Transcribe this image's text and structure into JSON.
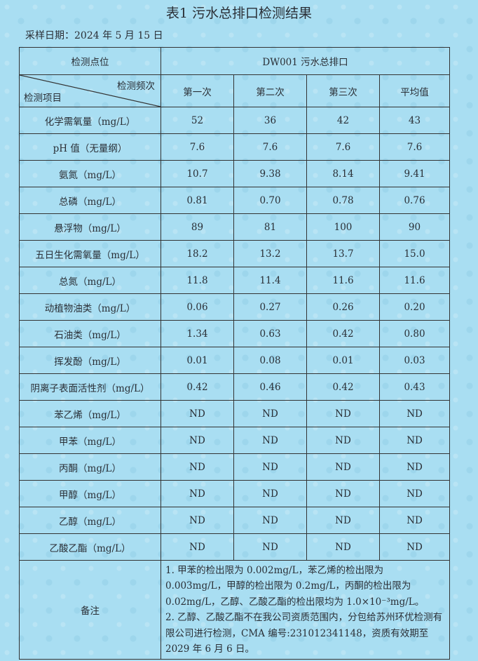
{
  "title": "表1 污水总排口检测结果",
  "sample_date": "采样日期：2024 年 5 月 15 日",
  "header": {
    "point_label": "检测点位",
    "point_value": "DW001 污水总排口",
    "freq_label": "检测频次",
    "item_label": "检测项目",
    "columns": [
      "第一次",
      "第二次",
      "第三次",
      "平均值"
    ]
  },
  "rows": [
    {
      "item": "化学需氧量（mg/L）",
      "values": [
        "52",
        "36",
        "42",
        "43"
      ]
    },
    {
      "item": "pH 值（无量纲）",
      "values": [
        "7.6",
        "7.6",
        "7.6",
        "7.6"
      ]
    },
    {
      "item": "氨氮（mg/L）",
      "values": [
        "10.7",
        "9.38",
        "8.14",
        "9.41"
      ]
    },
    {
      "item": "总磷（mg/L）",
      "values": [
        "0.81",
        "0.70",
        "0.78",
        "0.76"
      ]
    },
    {
      "item": "悬浮物（mg/L）",
      "values": [
        "89",
        "81",
        "100",
        "90"
      ]
    },
    {
      "item": "五日生化需氧量（mg/L）",
      "values": [
        "18.2",
        "13.2",
        "13.7",
        "15.0"
      ]
    },
    {
      "item": "总氮（mg/L）",
      "values": [
        "11.8",
        "11.4",
        "11.6",
        "11.6"
      ]
    },
    {
      "item": "动植物油类（mg/L）",
      "values": [
        "0.06",
        "0.27",
        "0.26",
        "0.20"
      ]
    },
    {
      "item": "石油类（mg/L）",
      "values": [
        "1.34",
        "0.63",
        "0.42",
        "0.80"
      ]
    },
    {
      "item": "挥发酚（mg/L）",
      "values": [
        "0.01",
        "0.08",
        "0.01",
        "0.03"
      ]
    },
    {
      "item": "阴离子表面活性剂（mg/L）",
      "values": [
        "0.42",
        "0.46",
        "0.42",
        "0.43"
      ]
    },
    {
      "item": "苯乙烯（mg/L）",
      "values": [
        "ND",
        "ND",
        "ND",
        "ND"
      ]
    },
    {
      "item": "甲苯（mg/L）",
      "values": [
        "ND",
        "ND",
        "ND",
        "ND"
      ]
    },
    {
      "item": "丙酮（mg/L）",
      "values": [
        "ND",
        "ND",
        "ND",
        "ND"
      ]
    },
    {
      "item": "甲醇（mg/L）",
      "values": [
        "ND",
        "ND",
        "ND",
        "ND"
      ]
    },
    {
      "item": "乙醇（mg/L）",
      "values": [
        "ND",
        "ND",
        "ND",
        "ND"
      ]
    },
    {
      "item": "乙酸乙酯（mg/L）",
      "values": [
        "ND",
        "ND",
        "ND",
        "ND"
      ]
    }
  ],
  "notes": {
    "label": "备注",
    "note1": "1. 甲苯的检出限为 0.002mg/L，苯乙烯的检出限为 0.003mg/L，甲醇的检出限为 0.2mg/L，丙酮的检出限为 0.02mg/L，乙醇、乙酸乙酯的检出限均为 1.0×10⁻³mg/L。",
    "note2": "2. 乙醇、乙酸乙酯不在我公司资质范围内，分包给苏州环优检测有限公司进行检测，CMA 编号:231012341148，资质有效期至 2029 年 6 月 6 日。"
  }
}
